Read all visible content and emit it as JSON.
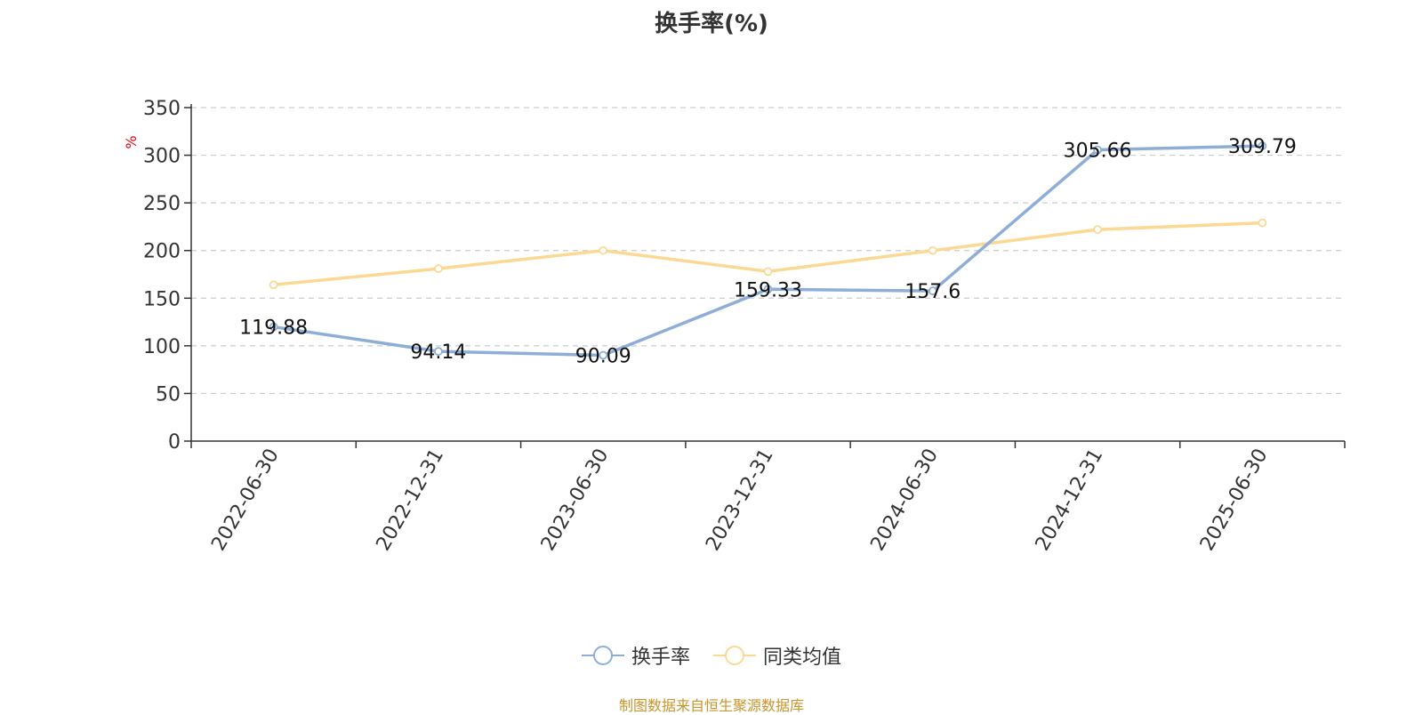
{
  "chart_data": {
    "type": "line",
    "title": "换手率(%)",
    "ylabel": "%",
    "xlabel": "",
    "categories": [
      "2022-06-30",
      "2022-12-31",
      "2023-06-30",
      "2023-12-31",
      "2024-06-30",
      "2024-12-31",
      "2025-06-30"
    ],
    "ylim": [
      0,
      350
    ],
    "yticks": [
      "0",
      "50",
      "100",
      "150",
      "200",
      "250",
      "300",
      "350"
    ],
    "grid": true,
    "legend_position": "bottom",
    "series": [
      {
        "name": "换手率",
        "color": "#8eaed8",
        "values": [
          119.88,
          94.14,
          90.09,
          159.33,
          157.6,
          305.66,
          309.79
        ],
        "labels": [
          "119.88",
          "94.14",
          "90.09",
          "159.33",
          "157.6",
          "305.66",
          "309.79"
        ]
      },
      {
        "name": "同类均值",
        "color": "#fbd993",
        "values": [
          164,
          181,
          200,
          178,
          200,
          222,
          229
        ]
      }
    ]
  },
  "source": "制图数据来自恒生聚源数据库"
}
